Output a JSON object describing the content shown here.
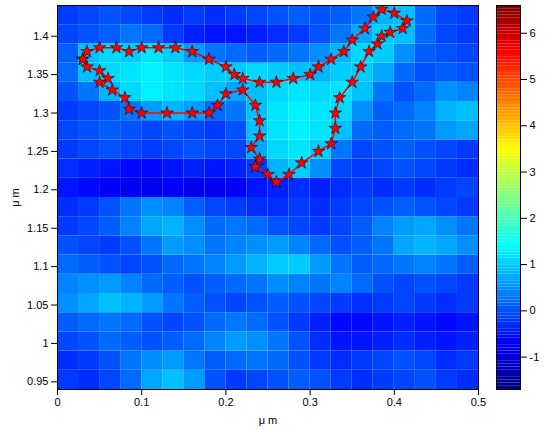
{
  "chart_data": {
    "type": "heatmap",
    "x_label": "μ m",
    "y_label": "μ m",
    "xlim": [
      0,
      0.5
    ],
    "ylim": [
      0.94,
      1.44
    ],
    "xticks": [
      0,
      0.1,
      0.2,
      0.3,
      0.4,
      0.5
    ],
    "yticks": [
      0.95,
      1,
      1.05,
      1.1,
      1.15,
      1.2,
      1.25,
      1.3,
      1.35,
      1.4
    ],
    "grid": false,
    "x_bins": [
      0,
      0.025,
      0.05,
      0.075,
      0.1,
      0.125,
      0.15,
      0.175,
      0.2,
      0.225,
      0.25,
      0.275,
      0.3,
      0.325,
      0.35,
      0.375,
      0.4,
      0.425,
      0.45,
      0.475,
      0.5
    ],
    "y_bins": [
      0.94,
      0.965,
      0.99,
      1.015,
      1.04,
      1.065,
      1.09,
      1.115,
      1.14,
      1.165,
      1.19,
      1.215,
      1.24,
      1.265,
      1.29,
      1.315,
      1.34,
      1.365,
      1.39,
      1.415,
      1.44
    ],
    "z": [
      [
        -0.2,
        -0.3,
        -0.1,
        0.2,
        0.7,
        0.9,
        0.6,
        0.0,
        -0.2,
        -0.1,
        0.0,
        0.1,
        0.0,
        -0.2,
        -0.3,
        -0.2,
        -0.1,
        0.0,
        -0.2,
        -0.3
      ],
      [
        -0.3,
        -0.2,
        0.0,
        0.3,
        0.5,
        0.6,
        0.3,
        0.1,
        0.2,
        0.3,
        0.2,
        0.0,
        -0.2,
        -0.3,
        -0.2,
        -0.1,
        0.0,
        -0.1,
        -0.3,
        -0.2
      ],
      [
        -0.1,
        0.0,
        0.2,
        0.1,
        0.0,
        0.1,
        0.2,
        0.4,
        0.6,
        0.5,
        0.3,
        0.0,
        -0.3,
        -0.5,
        -0.5,
        -0.4,
        -0.3,
        -0.4,
        -0.5,
        -0.4
      ],
      [
        0.1,
        0.2,
        0.3,
        0.2,
        0.0,
        -0.1,
        0.0,
        0.2,
        0.3,
        0.2,
        0.0,
        -0.2,
        -0.4,
        -0.6,
        -0.6,
        -0.5,
        -0.4,
        -0.5,
        -0.6,
        -0.5
      ],
      [
        0.5,
        0.7,
        0.9,
        0.8,
        0.6,
        0.3,
        0.1,
        0.0,
        -0.1,
        0.0,
        0.1,
        0.0,
        -0.1,
        -0.2,
        -0.3,
        -0.2,
        -0.1,
        -0.2,
        -0.3,
        -0.2
      ],
      [
        0.4,
        0.5,
        0.6,
        0.4,
        0.2,
        0.1,
        0.0,
        0.1,
        0.2,
        0.3,
        0.5,
        0.4,
        0.3,
        0.4,
        0.2,
        0.0,
        -0.1,
        0.0,
        -0.1,
        -0.2
      ],
      [
        0.2,
        0.1,
        0.0,
        -0.1,
        0.0,
        0.2,
        0.3,
        0.4,
        0.6,
        0.8,
        1.0,
        1.0,
        0.6,
        0.3,
        0.1,
        0.2,
        0.3,
        0.4,
        0.3,
        0.1
      ],
      [
        0.0,
        -0.1,
        -0.2,
        0.0,
        0.3,
        0.6,
        0.5,
        0.3,
        0.4,
        0.5,
        0.6,
        0.4,
        0.2,
        0.0,
        0.1,
        0.3,
        0.7,
        0.8,
        0.7,
        0.5
      ],
      [
        -0.2,
        -0.1,
        0.1,
        0.4,
        0.7,
        0.8,
        0.5,
        0.2,
        0.3,
        0.2,
        0.0,
        -0.1,
        -0.2,
        -0.1,
        0.1,
        0.4,
        0.6,
        0.7,
        0.5,
        0.3
      ],
      [
        -0.3,
        -0.2,
        0.0,
        0.3,
        0.5,
        0.4,
        0.1,
        -0.1,
        -0.2,
        -0.3,
        -0.3,
        -0.2,
        -0.3,
        -0.2,
        -0.1,
        0.0,
        0.1,
        0.0,
        -0.1,
        -0.2
      ],
      [
        -0.5,
        -0.6,
        -0.7,
        -0.8,
        -0.8,
        -0.7,
        -0.8,
        -0.8,
        -0.7,
        -0.5,
        -0.4,
        -0.3,
        -0.4,
        -0.3,
        -0.2,
        -0.3,
        -0.2,
        -0.3,
        -0.2,
        -0.1
      ],
      [
        -0.3,
        -0.4,
        -0.5,
        -0.6,
        -0.6,
        -0.5,
        -0.4,
        -0.5,
        -0.4,
        -0.2,
        0.8,
        1.0,
        0.5,
        -0.1,
        -0.2,
        -0.1,
        0.0,
        -0.1,
        -0.2,
        -0.3
      ],
      [
        -0.2,
        -0.1,
        0.0,
        -0.1,
        -0.2,
        -0.1,
        0.0,
        -0.1,
        -0.1,
        0.7,
        1.1,
        1.2,
        1.0,
        0.3,
        -0.1,
        0.0,
        0.1,
        0.0,
        -0.1,
        -0.2
      ],
      [
        -0.1,
        0.0,
        0.1,
        0.0,
        -0.1,
        0.0,
        -0.1,
        -0.2,
        0.0,
        0.9,
        1.2,
        1.3,
        1.2,
        0.9,
        0.2,
        0.1,
        0.2,
        0.3,
        0.6,
        0.7
      ],
      [
        -0.2,
        -0.1,
        0.0,
        0.3,
        0.6,
        0.8,
        0.6,
        0.2,
        0.3,
        0.9,
        1.2,
        1.3,
        1.2,
        1.1,
        0.5,
        0.1,
        0.2,
        0.4,
        0.8,
        0.9
      ],
      [
        0.0,
        0.3,
        0.8,
        1.1,
        1.3,
        1.2,
        1.1,
        0.9,
        0.7,
        0.9,
        1.1,
        1.2,
        1.1,
        1.2,
        0.9,
        0.3,
        0.0,
        0.2,
        0.5,
        0.4
      ],
      [
        0.2,
        0.9,
        1.1,
        1.2,
        1.3,
        1.2,
        1.1,
        1.0,
        1.0,
        1.1,
        1.0,
        0.9,
        0.8,
        1.0,
        1.0,
        0.7,
        0.2,
        0.0,
        0.1,
        0.0
      ],
      [
        0.1,
        0.9,
        1.1,
        1.0,
        1.2,
        1.0,
        0.6,
        0.3,
        0.2,
        0.1,
        0.2,
        0.3,
        0.5,
        0.8,
        1.1,
        1.0,
        0.5,
        0.1,
        0.0,
        -0.1
      ],
      [
        -0.1,
        0.0,
        0.1,
        0.3,
        0.2,
        -0.2,
        -0.4,
        -0.5,
        -0.5,
        -0.4,
        -0.3,
        -0.2,
        0.0,
        0.3,
        0.7,
        1.0,
        0.9,
        0.2,
        -0.1,
        -0.2
      ],
      [
        -0.2,
        -0.1,
        0.0,
        -0.1,
        -0.2,
        -0.3,
        -0.2,
        -0.3,
        -0.2,
        -0.1,
        0.0,
        0.1,
        0.0,
        0.1,
        0.3,
        0.8,
        0.9,
        0.2,
        -0.1,
        -0.2
      ]
    ],
    "colorbar": {
      "range": [
        -1.7,
        6.6
      ],
      "ticks": [
        -1,
        0,
        1,
        2,
        3,
        4,
        5,
        6
      ]
    },
    "contour": {
      "color": "#ff0000",
      "marker": "star",
      "line_style": "solid",
      "x": [
        0.03,
        0.035,
        0.05,
        0.06,
        0.05,
        0.065,
        0.08,
        0.085,
        0.1,
        0.13,
        0.16,
        0.18,
        0.19,
        0.2,
        0.22,
        0.235,
        0.24,
        0.24,
        0.23,
        0.24,
        0.235,
        0.25,
        0.26,
        0.275,
        0.29,
        0.31,
        0.325,
        0.33,
        0.33,
        0.335,
        0.35,
        0.36,
        0.37,
        0.38,
        0.385,
        0.395,
        0.41,
        0.415,
        0.4,
        0.385,
        0.375,
        0.365,
        0.35,
        0.34,
        0.325,
        0.31,
        0.3,
        0.28,
        0.26,
        0.24,
        0.22,
        0.21,
        0.2,
        0.18,
        0.16,
        0.14,
        0.12,
        0.1,
        0.085,
        0.07,
        0.05,
        0.035,
        0.03
      ],
      "y": [
        1.37,
        1.36,
        1.355,
        1.345,
        1.34,
        1.33,
        1.32,
        1.305,
        1.3,
        1.3,
        1.3,
        1.3,
        1.31,
        1.325,
        1.33,
        1.31,
        1.29,
        1.27,
        1.255,
        1.24,
        1.23,
        1.22,
        1.21,
        1.22,
        1.235,
        1.25,
        1.26,
        1.28,
        1.3,
        1.32,
        1.34,
        1.36,
        1.38,
        1.39,
        1.4,
        1.405,
        1.41,
        1.42,
        1.43,
        1.435,
        1.425,
        1.41,
        1.395,
        1.38,
        1.37,
        1.36,
        1.35,
        1.345,
        1.34,
        1.34,
        1.345,
        1.35,
        1.36,
        1.37,
        1.38,
        1.385,
        1.385,
        1.385,
        1.38,
        1.385,
        1.385,
        1.38,
        1.37
      ]
    }
  }
}
